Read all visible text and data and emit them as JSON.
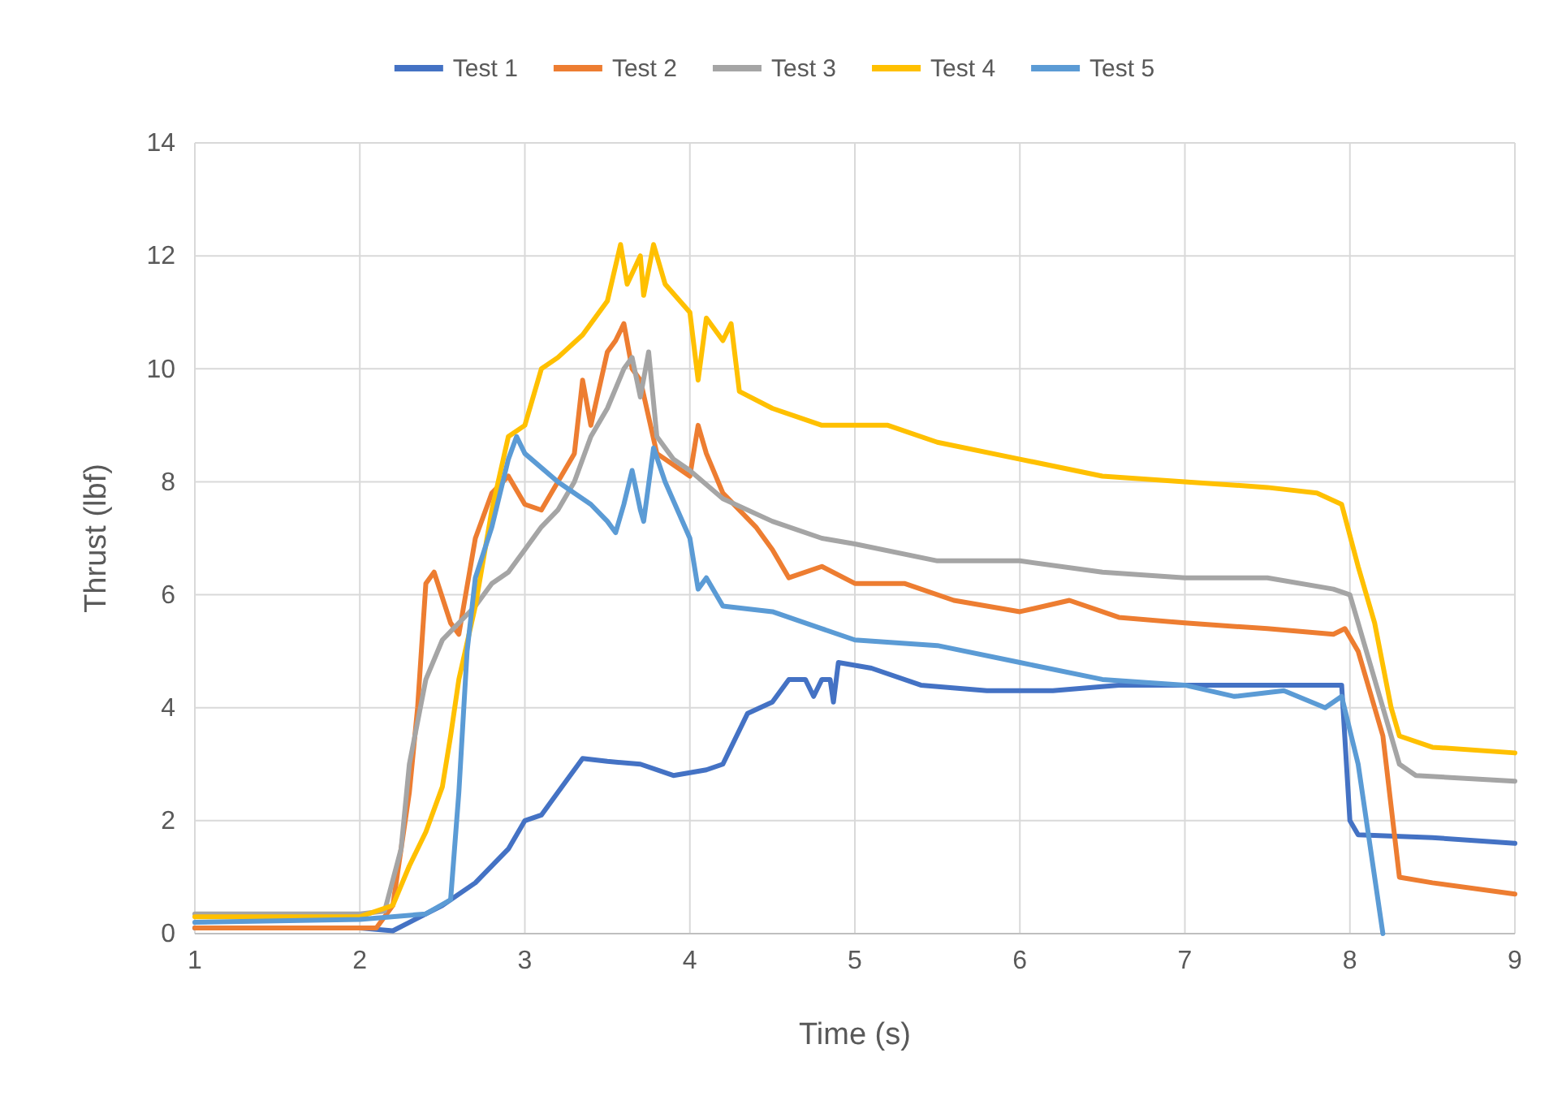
{
  "chart_data": {
    "type": "line",
    "xlabel": "Time (s)",
    "ylabel": "Thrust (lbf)",
    "xlim": [
      1,
      9
    ],
    "xticks": [
      1,
      2,
      3,
      4,
      5,
      6,
      7,
      8,
      9
    ],
    "ylim": [
      0,
      14
    ],
    "yticks": [
      0,
      2,
      4,
      6,
      8,
      10,
      12,
      14
    ],
    "grid": true,
    "legend": "top",
    "marker": "none",
    "line_style": "solid",
    "series": [
      {
        "name": "Test 1",
        "color": "#4472c4",
        "x": [
          1,
          1.5,
          2,
          2.2,
          2.3,
          2.5,
          2.7,
          2.9,
          3,
          3.1,
          3.2,
          3.35,
          3.5,
          3.7,
          3.9,
          4.1,
          4.2,
          4.35,
          4.5,
          4.6,
          4.7,
          4.75,
          4.8,
          4.85,
          4.87,
          4.9,
          5.1,
          5.4,
          5.8,
          6.2,
          6.6,
          7,
          7.5,
          7.95,
          8,
          8.05,
          8.5,
          9
        ],
        "values": [
          0.1,
          0.1,
          0.1,
          0.05,
          0.2,
          0.5,
          0.9,
          1.5,
          2,
          2.1,
          2.5,
          3.1,
          3.05,
          3,
          2.8,
          2.9,
          3,
          3.9,
          4.1,
          4.5,
          4.5,
          4.2,
          4.5,
          4.5,
          4.1,
          4.8,
          4.7,
          4.4,
          4.3,
          4.3,
          4.4,
          4.4,
          4.4,
          4.4,
          2,
          1.75,
          1.7,
          1.6
        ]
      },
      {
        "name": "Test 2",
        "color": "#ed7d31",
        "x": [
          1,
          2,
          2.1,
          2.2,
          2.3,
          2.35,
          2.4,
          2.45,
          2.55,
          2.6,
          2.7,
          2.8,
          2.9,
          3,
          3.1,
          3.2,
          3.3,
          3.35,
          3.4,
          3.5,
          3.55,
          3.6,
          3.65,
          3.7,
          3.8,
          3.9,
          4,
          4.05,
          4.1,
          4.2,
          4.4,
          4.5,
          4.6,
          4.8,
          5,
          5.3,
          5.6,
          6,
          6.3,
          6.6,
          7,
          7.5,
          7.9,
          7.97,
          8.05,
          8.2,
          8.3,
          8.5,
          9
        ],
        "values": [
          0.1,
          0.1,
          0.1,
          0.5,
          2.5,
          4,
          6.2,
          6.4,
          5.5,
          5.3,
          7,
          7.8,
          8.1,
          7.6,
          7.5,
          8,
          8.5,
          9.8,
          9,
          10.3,
          10.5,
          10.8,
          10,
          9.8,
          8.5,
          8.3,
          8.1,
          9,
          8.5,
          7.8,
          7.2,
          6.8,
          6.3,
          6.5,
          6.2,
          6.2,
          5.9,
          5.7,
          5.9,
          5.6,
          5.5,
          5.4,
          5.3,
          5.4,
          5,
          3.5,
          1,
          0.9,
          0.7
        ]
      },
      {
        "name": "Test 3",
        "color": "#a5a5a5",
        "x": [
          1,
          2,
          2.15,
          2.25,
          2.3,
          2.4,
          2.5,
          2.6,
          2.7,
          2.8,
          2.9,
          3,
          3.1,
          3.2,
          3.3,
          3.4,
          3.5,
          3.6,
          3.65,
          3.7,
          3.75,
          3.8,
          3.9,
          4,
          4.2,
          4.5,
          4.8,
          5,
          5.5,
          6,
          6.5,
          7,
          7.5,
          7.9,
          8,
          8.1,
          8.2,
          8.3,
          8.4,
          9
        ],
        "values": [
          0.35,
          0.35,
          0.4,
          1.5,
          3,
          4.5,
          5.2,
          5.5,
          5.8,
          6.2,
          6.4,
          6.8,
          7.2,
          7.5,
          8,
          8.8,
          9.3,
          10,
          10.2,
          9.5,
          10.3,
          8.8,
          8.4,
          8.2,
          7.7,
          7.3,
          7,
          6.9,
          6.6,
          6.6,
          6.4,
          6.3,
          6.3,
          6.1,
          6,
          5,
          4,
          3,
          2.8,
          2.7
        ]
      },
      {
        "name": "Test 4",
        "color": "#ffc000",
        "x": [
          1,
          2,
          2.2,
          2.3,
          2.4,
          2.5,
          2.55,
          2.6,
          2.7,
          2.8,
          2.9,
          3,
          3.1,
          3.2,
          3.35,
          3.5,
          3.58,
          3.62,
          3.7,
          3.72,
          3.78,
          3.85,
          4,
          4.05,
          4.1,
          4.2,
          4.25,
          4.3,
          4.5,
          4.8,
          5,
          5.2,
          5.5,
          6,
          6.5,
          7,
          7.5,
          7.8,
          7.95,
          8.05,
          8.15,
          8.25,
          8.3,
          8.5,
          9
        ],
        "values": [
          0.3,
          0.3,
          0.5,
          1.2,
          1.8,
          2.6,
          3.5,
          4.5,
          5.8,
          7.5,
          8.8,
          9,
          10,
          10.2,
          10.6,
          11.2,
          12.2,
          11.5,
          12,
          11.3,
          12.2,
          11.5,
          11,
          9.8,
          10.9,
          10.5,
          10.8,
          9.6,
          9.3,
          9,
          9,
          9,
          8.7,
          8.4,
          8.1,
          8,
          7.9,
          7.8,
          7.6,
          6.5,
          5.5,
          4,
          3.5,
          3.3,
          3.2
        ]
      },
      {
        "name": "Test 5",
        "color": "#5b9bd5",
        "x": [
          1,
          2,
          2.4,
          2.55,
          2.6,
          2.65,
          2.7,
          2.8,
          2.9,
          2.95,
          3,
          3.2,
          3.4,
          3.5,
          3.55,
          3.6,
          3.65,
          3.7,
          3.72,
          3.78,
          3.85,
          4,
          4.05,
          4.1,
          4.2,
          4.5,
          4.8,
          5,
          5.5,
          6,
          6.5,
          7,
          7.3,
          7.6,
          7.85,
          7.95,
          8.05,
          8.2
        ],
        "values": [
          0.2,
          0.25,
          0.35,
          0.6,
          2.5,
          5,
          6.3,
          7.2,
          8.4,
          8.8,
          8.5,
          8,
          7.6,
          7.3,
          7.1,
          7.6,
          8.2,
          7.5,
          7.3,
          8.6,
          8,
          7,
          6.1,
          6.3,
          5.8,
          5.7,
          5.4,
          5.2,
          5.1,
          4.8,
          4.5,
          4.4,
          4.2,
          4.3,
          4,
          4.2,
          3,
          0
        ]
      }
    ]
  }
}
